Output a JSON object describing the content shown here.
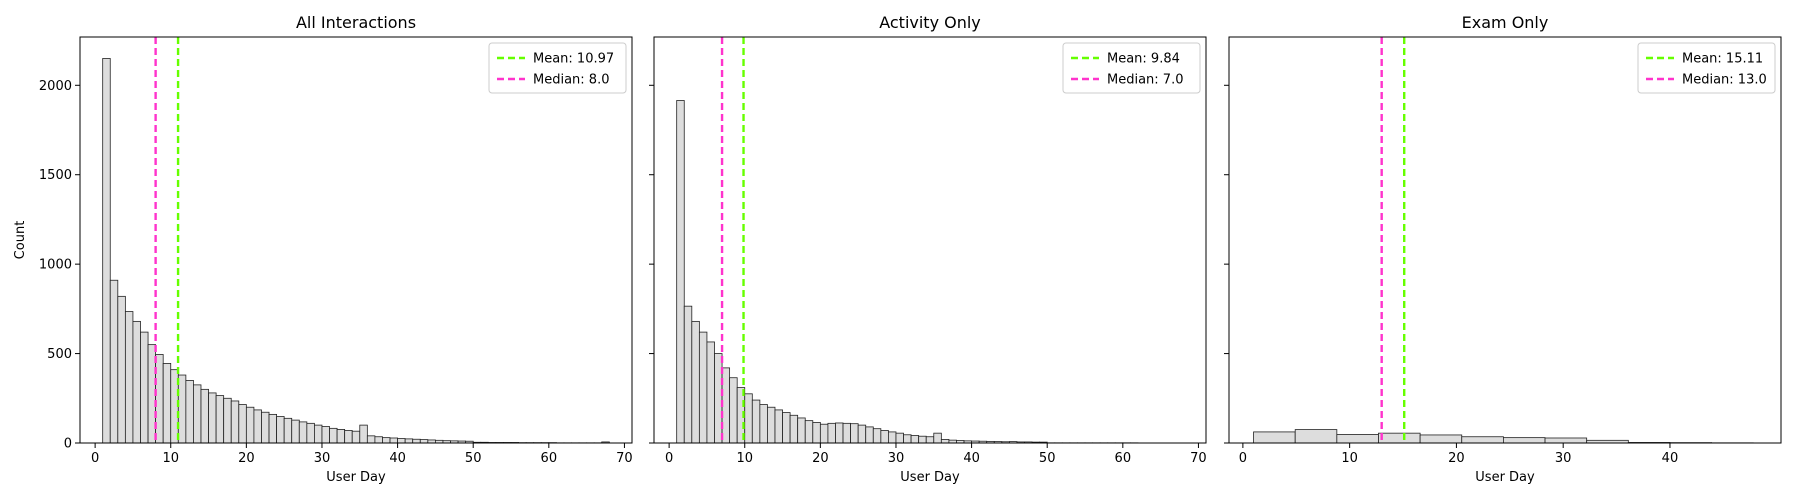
{
  "chart_data": [
    {
      "type": "bar",
      "title": "All Interactions",
      "xlabel": "User Day",
      "ylabel": "Count",
      "xlim": [
        -2,
        71
      ],
      "ylim": [
        0,
        2270
      ],
      "xticks": [
        0,
        10,
        20,
        30,
        40,
        50,
        60,
        70
      ],
      "yticks": [
        0,
        500,
        1000,
        1500,
        2000
      ],
      "bin_width": 1,
      "bin_start": 1,
      "values": [
        2150,
        910,
        820,
        735,
        680,
        620,
        550,
        495,
        445,
        410,
        380,
        350,
        325,
        300,
        280,
        265,
        250,
        235,
        215,
        200,
        185,
        172,
        160,
        148,
        138,
        128,
        118,
        110,
        100,
        92,
        82,
        76,
        70,
        66,
        100,
        40,
        35,
        30,
        28,
        25,
        23,
        21,
        19,
        17,
        15,
        13,
        12,
        11,
        10,
        4,
        4,
        3,
        3,
        3,
        3,
        2,
        2,
        2,
        2,
        2,
        1,
        1,
        1,
        1,
        1,
        1,
        6
      ],
      "lines": [
        {
          "label": "Mean: 10.97",
          "value": 10.97,
          "color": "#66ff00"
        },
        {
          "label": "Median: 8.0",
          "value": 8.0,
          "color": "#ff33cc"
        }
      ],
      "legend_position": "top-right",
      "grid": false,
      "bar_color": "#dddddd"
    },
    {
      "type": "bar",
      "title": "Activity Only",
      "xlabel": "User Day",
      "ylabel": "",
      "xlim": [
        -2,
        71
      ],
      "ylim": [
        0,
        2270
      ],
      "xticks": [
        0,
        10,
        20,
        30,
        40,
        50,
        60,
        70
      ],
      "yticks": [
        0,
        500,
        1000,
        1500,
        2000
      ],
      "bin_width": 1,
      "bin_start": 1,
      "values": [
        1915,
        765,
        680,
        620,
        565,
        500,
        420,
        365,
        310,
        275,
        240,
        215,
        200,
        185,
        170,
        155,
        140,
        125,
        115,
        105,
        110,
        112,
        110,
        108,
        100,
        90,
        80,
        70,
        62,
        55,
        46,
        42,
        38,
        35,
        55,
        20,
        16,
        14,
        12,
        11,
        10,
        9,
        8,
        7,
        8,
        6,
        6,
        5,
        5,
        1,
        1,
        1,
        1,
        1,
        1,
        1,
        1,
        1,
        1,
        1,
        1
      ],
      "lines": [
        {
          "label": "Mean: 9.84",
          "value": 9.84,
          "color": "#66ff00"
        },
        {
          "label": "Median: 7.0",
          "value": 7.0,
          "color": "#ff33cc"
        }
      ],
      "legend_position": "top-right",
      "grid": false,
      "bar_color": "#dddddd"
    },
    {
      "type": "bar",
      "title": "Exam Only",
      "xlabel": "User Day",
      "ylabel": "",
      "xlim": [
        -1.3,
        50.4
      ],
      "ylim": [
        0,
        2270
      ],
      "xticks": [
        0,
        10,
        20,
        30,
        40
      ],
      "yticks": [
        0,
        500,
        1000,
        1500,
        2000
      ],
      "bin_width": 3.9,
      "bin_start": 1,
      "values": [
        62,
        75,
        48,
        55,
        45,
        35,
        30,
        28,
        15,
        3,
        2,
        1
      ],
      "lines": [
        {
          "label": "Mean: 15.11",
          "value": 15.11,
          "color": "#66ff00"
        },
        {
          "label": "Median: 13.0",
          "value": 13.0,
          "color": "#ff33cc"
        }
      ],
      "legend_position": "top-right",
      "grid": false,
      "bar_color": "#dddddd"
    }
  ]
}
